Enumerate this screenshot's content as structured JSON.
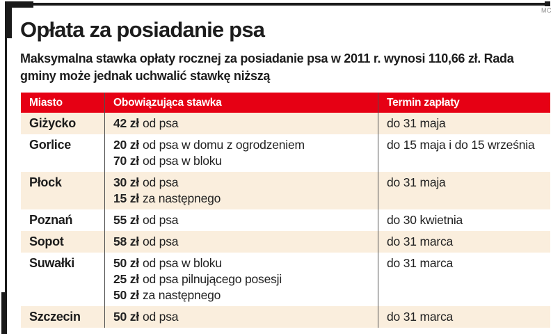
{
  "meta": {
    "credit": "MC"
  },
  "colors": {
    "accent_red": "#e60014",
    "row_beige": "#faeedd",
    "frame_black": "#1a1a1a",
    "divider_gray": "#4f4f4f"
  },
  "chart_data": {
    "type": "table",
    "title": "Opłata za posiadanie psa",
    "subtitle": "Maksymalna stawka opłaty rocznej za posiadanie psa w 2011 r. wynosi 110,66 zł. Rada gminy może jednak uchwalić stawkę niższą",
    "columns": [
      "Miasto",
      "Obowiązująca stawka",
      "Termin zapłaty"
    ],
    "rows": [
      {
        "city": "Giżycko",
        "rates": [
          {
            "amount": "42 zł",
            "desc": "od psa"
          }
        ],
        "deadline": "do 31 maja"
      },
      {
        "city": "Gorlice",
        "rates": [
          {
            "amount": "20 zł",
            "desc": "od psa w domu z ogrodzeniem"
          },
          {
            "amount": "70 zł",
            "desc": "od psa w bloku"
          }
        ],
        "deadline": "do 15 maja i do 15 września"
      },
      {
        "city": "Płock",
        "rates": [
          {
            "amount": "30 zł",
            "desc": "od psa"
          },
          {
            "amount": "15 zł",
            "desc": "za następnego"
          }
        ],
        "deadline": "do 31 maja"
      },
      {
        "city": "Poznań",
        "rates": [
          {
            "amount": "55 zł",
            "desc": "od psa"
          }
        ],
        "deadline": "do 30 kwietnia"
      },
      {
        "city": "Sopot",
        "rates": [
          {
            "amount": "58 zł",
            "desc": "od psa"
          }
        ],
        "deadline": "do 31 marca"
      },
      {
        "city": "Suwałki",
        "rates": [
          {
            "amount": "50 zł",
            "desc": "od psa w bloku"
          },
          {
            "amount": "25 zł",
            "desc": "od psa pilnującego posesji"
          },
          {
            "amount": "50 zł",
            "desc": "za następnego"
          }
        ],
        "deadline": "do 31 marca"
      },
      {
        "city": "Szczecin",
        "rates": [
          {
            "amount": "50 zł",
            "desc": "od psa"
          }
        ],
        "deadline": "do 31 marca"
      }
    ]
  }
}
